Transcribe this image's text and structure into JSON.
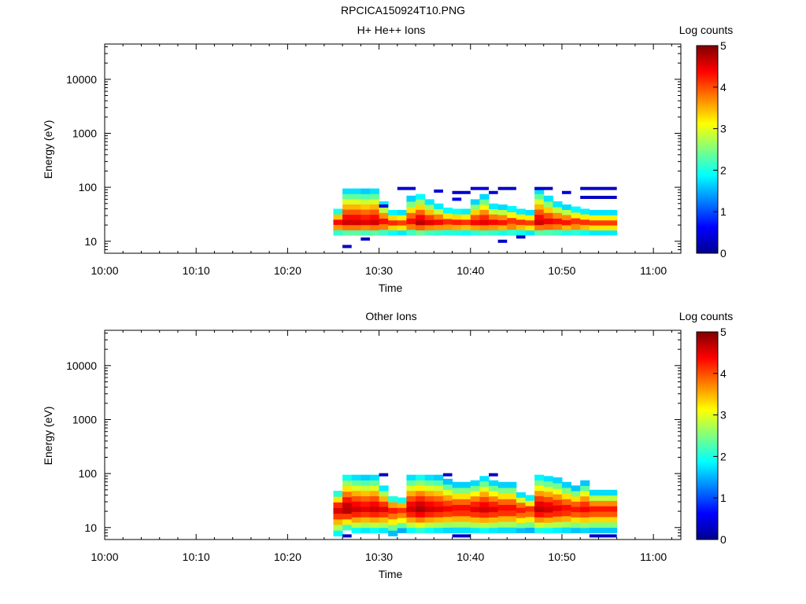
{
  "figure": {
    "title": "RPCICA150924T10.PNG"
  },
  "chart_data": [
    {
      "type": "heatmap",
      "title": "H+ He++ Ions",
      "xlabel": "Time",
      "ylabel": "Energy (eV)",
      "x_ticks": [
        "10:00",
        "10:10",
        "10:20",
        "10:30",
        "10:40",
        "10:50",
        "11:00"
      ],
      "xlim": [
        "10:00",
        "11:03"
      ],
      "y_scale": "log",
      "y_ticks": [
        10,
        100,
        1000,
        10000
      ],
      "ylim": [
        6,
        45000
      ],
      "colorbar": {
        "label": "Log counts",
        "ticks": [
          0,
          1,
          2,
          3,
          4,
          5
        ],
        "range": [
          0,
          5
        ]
      },
      "columns": [
        {
          "t0": "10:25",
          "t1": "10:26",
          "emin": 13,
          "emax": 40,
          "peak": 4.4
        },
        {
          "t0": "10:26",
          "t1": "10:27",
          "emin": 13,
          "emax": 95,
          "peak": 4.6
        },
        {
          "t0": "10:27",
          "t1": "10:28",
          "emin": 13,
          "emax": 95,
          "peak": 4.6
        },
        {
          "t0": "10:28",
          "t1": "10:29",
          "emin": 13,
          "emax": 95,
          "peak": 4.5
        },
        {
          "t0": "10:29",
          "t1": "10:30",
          "emin": 13,
          "emax": 95,
          "peak": 4.6
        },
        {
          "t0": "10:30",
          "t1": "10:31",
          "emin": 13,
          "emax": 55,
          "peak": 4.4
        },
        {
          "t0": "10:31",
          "t1": "10:32",
          "emin": 13,
          "emax": 38,
          "peak": 4.2
        },
        {
          "t0": "10:32",
          "t1": "10:33",
          "emin": 13,
          "emax": 38,
          "peak": 4.1
        },
        {
          "t0": "10:33",
          "t1": "10:34",
          "emin": 13,
          "emax": 70,
          "peak": 4.4
        },
        {
          "t0": "10:34",
          "t1": "10:35",
          "emin": 13,
          "emax": 75,
          "peak": 4.7
        },
        {
          "t0": "10:35",
          "t1": "10:36",
          "emin": 13,
          "emax": 60,
          "peak": 4.5
        },
        {
          "t0": "10:36",
          "t1": "10:37",
          "emin": 13,
          "emax": 50,
          "peak": 4.4
        },
        {
          "t0": "10:37",
          "t1": "10:38",
          "emin": 13,
          "emax": 42,
          "peak": 4.3
        },
        {
          "t0": "10:38",
          "t1": "10:39",
          "emin": 13,
          "emax": 40,
          "peak": 4.3
        },
        {
          "t0": "10:39",
          "t1": "10:40",
          "emin": 13,
          "emax": 40,
          "peak": 4.2
        },
        {
          "t0": "10:40",
          "t1": "10:41",
          "emin": 13,
          "emax": 60,
          "peak": 4.4
        },
        {
          "t0": "10:41",
          "t1": "10:42",
          "emin": 13,
          "emax": 75,
          "peak": 4.5
        },
        {
          "t0": "10:42",
          "t1": "10:43",
          "emin": 13,
          "emax": 50,
          "peak": 4.4
        },
        {
          "t0": "10:43",
          "t1": "10:44",
          "emin": 13,
          "emax": 48,
          "peak": 4.3
        },
        {
          "t0": "10:44",
          "t1": "10:45",
          "emin": 13,
          "emax": 45,
          "peak": 4.3
        },
        {
          "t0": "10:45",
          "t1": "10:46",
          "emin": 13,
          "emax": 40,
          "peak": 4.2
        },
        {
          "t0": "10:46",
          "t1": "10:47",
          "emin": 13,
          "emax": 38,
          "peak": 4.1
        },
        {
          "t0": "10:47",
          "t1": "10:48",
          "emin": 13,
          "emax": 95,
          "peak": 4.6
        },
        {
          "t0": "10:48",
          "t1": "10:49",
          "emin": 13,
          "emax": 70,
          "peak": 4.5
        },
        {
          "t0": "10:49",
          "t1": "10:50",
          "emin": 13,
          "emax": 55,
          "peak": 4.4
        },
        {
          "t0": "10:50",
          "t1": "10:51",
          "emin": 13,
          "emax": 48,
          "peak": 4.3
        },
        {
          "t0": "10:51",
          "t1": "10:52",
          "emin": 13,
          "emax": 44,
          "peak": 4.3
        },
        {
          "t0": "10:52",
          "t1": "10:53",
          "emin": 13,
          "emax": 40,
          "peak": 4.2
        },
        {
          "t0": "10:53",
          "t1": "10:54",
          "emin": 13,
          "emax": 38,
          "peak": 4.1
        },
        {
          "t0": "10:54",
          "t1": "10:55",
          "emin": 13,
          "emax": 38,
          "peak": 4.1
        },
        {
          "t0": "10:55",
          "t1": "10:56",
          "emin": 13,
          "emax": 38,
          "peak": 4.1
        }
      ],
      "sparse": [
        {
          "t0": "10:26",
          "t1": "10:27",
          "e": 8,
          "v": 0.3
        },
        {
          "t0": "10:28",
          "t1": "10:29",
          "e": 11,
          "v": 0.3
        },
        {
          "t0": "10:30",
          "t1": "10:31",
          "e": 45,
          "v": 0.4
        },
        {
          "t0": "10:32",
          "t1": "10:34",
          "e": 95,
          "v": 0.4
        },
        {
          "t0": "10:36",
          "t1": "10:37",
          "e": 85,
          "v": 0.4
        },
        {
          "t0": "10:38",
          "t1": "10:39",
          "e": 60,
          "v": 0.5
        },
        {
          "t0": "10:38",
          "t1": "10:40",
          "e": 80,
          "v": 0.3
        },
        {
          "t0": "10:40",
          "t1": "10:42",
          "e": 95,
          "v": 0.4
        },
        {
          "t0": "10:42",
          "t1": "10:43",
          "e": 80,
          "v": 0.4
        },
        {
          "t0": "10:43",
          "t1": "10:45",
          "e": 95,
          "v": 0.3
        },
        {
          "t0": "10:43",
          "t1": "10:44",
          "e": 10,
          "v": 0.3
        },
        {
          "t0": "10:45",
          "t1": "10:46",
          "e": 12,
          "v": 0.3
        },
        {
          "t0": "10:47",
          "t1": "10:49",
          "e": 95,
          "v": 0.3
        },
        {
          "t0": "10:50",
          "t1": "10:51",
          "e": 80,
          "v": 0.4
        },
        {
          "t0": "10:52",
          "t1": "10:56",
          "e": 95,
          "v": 0.3
        },
        {
          "t0": "10:52",
          "t1": "10:56",
          "e": 65,
          "v": 0.3
        }
      ]
    },
    {
      "type": "heatmap",
      "title": "Other Ions",
      "xlabel": "Time",
      "ylabel": "Energy (eV)",
      "x_ticks": [
        "10:00",
        "10:10",
        "10:20",
        "10:30",
        "10:40",
        "10:50",
        "11:00"
      ],
      "xlim": [
        "10:00",
        "11:03"
      ],
      "y_scale": "log",
      "y_ticks": [
        10,
        100,
        1000,
        10000
      ],
      "ylim": [
        6,
        45000
      ],
      "colorbar": {
        "label": "Log counts",
        "ticks": [
          0,
          1,
          2,
          3,
          4,
          5
        ],
        "range": [
          0,
          5
        ]
      },
      "columns": [
        {
          "t0": "10:25",
          "t1": "10:26",
          "emin": 7,
          "emax": 48,
          "peak": 4.6
        },
        {
          "t0": "10:26",
          "t1": "10:27",
          "emin": 9,
          "emax": 95,
          "peak": 4.8
        },
        {
          "t0": "10:27",
          "t1": "10:28",
          "emin": 8,
          "emax": 95,
          "peak": 4.6
        },
        {
          "t0": "10:28",
          "t1": "10:29",
          "emin": 8,
          "emax": 95,
          "peak": 4.5
        },
        {
          "t0": "10:29",
          "t1": "10:30",
          "emin": 8,
          "emax": 95,
          "peak": 4.6
        },
        {
          "t0": "10:30",
          "t1": "10:31",
          "emin": 8,
          "emax": 60,
          "peak": 4.5
        },
        {
          "t0": "10:31",
          "t1": "10:32",
          "emin": 7,
          "emax": 38,
          "peak": 4.3
        },
        {
          "t0": "10:32",
          "t1": "10:33",
          "emin": 8,
          "emax": 36,
          "peak": 4.2
        },
        {
          "t0": "10:33",
          "t1": "10:34",
          "emin": 8,
          "emax": 95,
          "peak": 4.6
        },
        {
          "t0": "10:34",
          "t1": "10:35",
          "emin": 8,
          "emax": 95,
          "peak": 4.8
        },
        {
          "t0": "10:35",
          "t1": "10:36",
          "emin": 8,
          "emax": 95,
          "peak": 4.6
        },
        {
          "t0": "10:36",
          "t1": "10:37",
          "emin": 8,
          "emax": 95,
          "peak": 4.5
        },
        {
          "t0": "10:37",
          "t1": "10:38",
          "emin": 8,
          "emax": 80,
          "peak": 4.4
        },
        {
          "t0": "10:38",
          "t1": "10:39",
          "emin": 8,
          "emax": 70,
          "peak": 4.4
        },
        {
          "t0": "10:39",
          "t1": "10:40",
          "emin": 8,
          "emax": 70,
          "peak": 4.4
        },
        {
          "t0": "10:40",
          "t1": "10:41",
          "emin": 8,
          "emax": 75,
          "peak": 4.5
        },
        {
          "t0": "10:41",
          "t1": "10:42",
          "emin": 8,
          "emax": 90,
          "peak": 4.6
        },
        {
          "t0": "10:42",
          "t1": "10:43",
          "emin": 8,
          "emax": 75,
          "peak": 4.5
        },
        {
          "t0": "10:43",
          "t1": "10:44",
          "emin": 8,
          "emax": 70,
          "peak": 4.4
        },
        {
          "t0": "10:44",
          "t1": "10:45",
          "emin": 8,
          "emax": 70,
          "peak": 4.4
        },
        {
          "t0": "10:45",
          "t1": "10:46",
          "emin": 8,
          "emax": 45,
          "peak": 4.3
        },
        {
          "t0": "10:46",
          "t1": "10:47",
          "emin": 8,
          "emax": 40,
          "peak": 4.2
        },
        {
          "t0": "10:47",
          "t1": "10:48",
          "emin": 8,
          "emax": 95,
          "peak": 4.7
        },
        {
          "t0": "10:48",
          "t1": "10:49",
          "emin": 8,
          "emax": 90,
          "peak": 4.6
        },
        {
          "t0": "10:49",
          "t1": "10:50",
          "emin": 8,
          "emax": 85,
          "peak": 4.5
        },
        {
          "t0": "10:50",
          "t1": "10:51",
          "emin": 8,
          "emax": 70,
          "peak": 4.4
        },
        {
          "t0": "10:51",
          "t1": "10:52",
          "emin": 8,
          "emax": 60,
          "peak": 4.3
        },
        {
          "t0": "10:52",
          "t1": "10:53",
          "emin": 8,
          "emax": 75,
          "peak": 4.4
        },
        {
          "t0": "10:53",
          "t1": "10:54",
          "emin": 8,
          "emax": 50,
          "peak": 4.3
        },
        {
          "t0": "10:54",
          "t1": "10:55",
          "emin": 8,
          "emax": 50,
          "peak": 4.3
        },
        {
          "t0": "10:55",
          "t1": "10:56",
          "emin": 8,
          "emax": 50,
          "peak": 4.3
        }
      ],
      "sparse": [
        {
          "t0": "10:26",
          "t1": "10:27",
          "e": 7,
          "v": 0.3
        },
        {
          "t0": "10:30",
          "t1": "10:31",
          "e": 95,
          "v": 0.3
        },
        {
          "t0": "10:37",
          "t1": "10:38",
          "e": 95,
          "v": 0.3
        },
        {
          "t0": "10:38",
          "t1": "10:40",
          "e": 7,
          "v": 0.3
        },
        {
          "t0": "10:42",
          "t1": "10:43",
          "e": 95,
          "v": 0.3
        },
        {
          "t0": "10:53",
          "t1": "10:56",
          "e": 7,
          "v": 0.3
        }
      ]
    }
  ]
}
